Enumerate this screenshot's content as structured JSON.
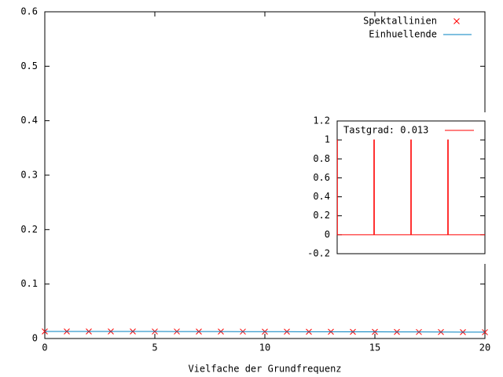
{
  "chart_data": [
    {
      "type": "line",
      "xlabel": "Vielfache der Grundfrequenz",
      "x": [
        0,
        1,
        2,
        3,
        4,
        5,
        6,
        7,
        8,
        9,
        10,
        11,
        12,
        13,
        14,
        15,
        16,
        17,
        18,
        19,
        20
      ],
      "series": [
        {
          "name": "Spektallinien",
          "color": "#ff0000",
          "style": "points",
          "values": [
            0.013,
            0.013,
            0.01299,
            0.01297,
            0.01294,
            0.01291,
            0.01287,
            0.01282,
            0.01277,
            0.01271,
            0.01265,
            0.01257,
            0.01249,
            0.01241,
            0.01231,
            0.01222,
            0.01211,
            0.012,
            0.01188,
            0.01176,
            0.01163
          ]
        },
        {
          "name": "Einhuellende",
          "color": "#0080c0",
          "style": "lines",
          "values": [
            0.013,
            0.013,
            0.01299,
            0.01297,
            0.01294,
            0.01291,
            0.01287,
            0.01282,
            0.01277,
            0.01271,
            0.01265,
            0.01257,
            0.01249,
            0.01241,
            0.01231,
            0.01222,
            0.01211,
            0.012,
            0.01188,
            0.01176,
            0.01163
          ]
        }
      ],
      "xlim": [
        0,
        20
      ],
      "xticks": [
        0,
        5,
        10,
        15,
        20
      ],
      "ylim": [
        0,
        0.6
      ],
      "yticks": [
        0,
        0.1,
        0.2,
        0.3,
        0.4,
        0.5,
        0.6
      ],
      "legend": "top-right"
    },
    {
      "type": "line",
      "x": [
        0,
        0.0065,
        0.0065,
        0.9935,
        0.9935,
        1.0065,
        1.0065,
        1.9935,
        1.9935,
        2.0065,
        2.0065,
        2.9935,
        2.9935,
        3.0065,
        3.0065,
        4
      ],
      "series": [
        {
          "name": "Tastgrad: 0.013",
          "color": "#ff0000",
          "style": "lines",
          "values": [
            1,
            1,
            0,
            0,
            1,
            1,
            0,
            0,
            1,
            1,
            0,
            0,
            1,
            1,
            0,
            0
          ]
        }
      ],
      "xlim": [
        0,
        4
      ],
      "ylim": [
        -0.2,
        1.2
      ],
      "yticks": [
        -0.2,
        0,
        0.2,
        0.4,
        0.6,
        0.8,
        1,
        1.2
      ],
      "legend": "top-left"
    }
  ]
}
